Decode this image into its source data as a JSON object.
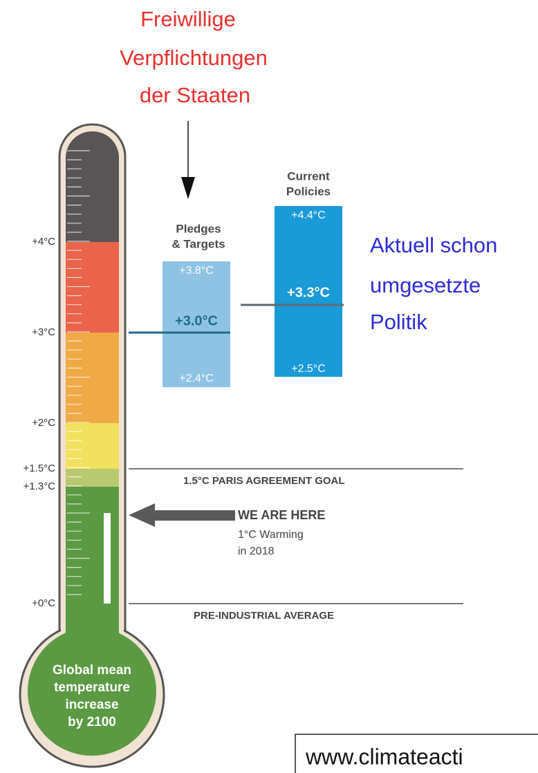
{
  "annotations": {
    "pledges_note": [
      "Freiwillige",
      "Verpflichtungen",
      "der Staaten"
    ],
    "policies_note": [
      "Aktuell schon",
      "umgesetzte",
      "Politik"
    ]
  },
  "scale": {
    "labels": [
      "+4°C",
      "+3°C",
      "+2°C",
      "+1.5°C",
      "+1.3°C",
      "+0°C"
    ]
  },
  "pledges": {
    "title": [
      "Pledges",
      "& Targets"
    ],
    "high": "+3.8°C",
    "mid": "+3.0°C",
    "low": "+2.4°C"
  },
  "policies": {
    "title": [
      "Current",
      "Policies"
    ],
    "high": "+4.4°C",
    "mid": "+3.3°C",
    "low": "+2.5°C"
  },
  "paris_goal": "1.5°C PARIS AGREEMENT GOAL",
  "we_are_here": {
    "title": "WE ARE HERE",
    "lines": [
      "1°C Warming",
      "in 2018"
    ]
  },
  "pre_industrial": "PRE-INDUSTRIAL AVERAGE",
  "bulb": [
    "Global mean",
    "temperature",
    "increase",
    "by 2100"
  ],
  "source": "www.climateacti"
}
